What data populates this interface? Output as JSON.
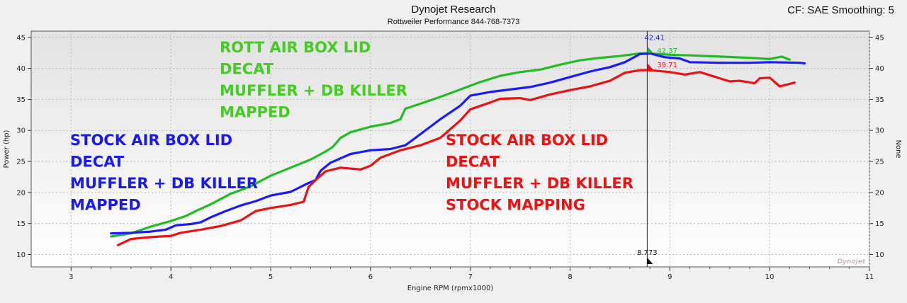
{
  "header": {
    "title": "Dynojet Research",
    "subtitle": "Rottweiler Performance 844-768-7373",
    "right": "CF: SAE Smoothing: 5"
  },
  "chart_data": {
    "type": "line",
    "xlabel": "Engine RPM (rpmx1000)",
    "ylabel": "Power (hp)",
    "ylabel_right": "None",
    "xlim": [
      2.6,
      11.0
    ],
    "ylim": [
      8,
      46
    ],
    "xticks": [
      "3",
      "4",
      "5",
      "6",
      "7",
      "8",
      "9",
      "10",
      "11"
    ],
    "yticks": [
      "10",
      "15",
      "20",
      "25",
      "30",
      "35",
      "40",
      "45"
    ],
    "grid": true,
    "cursor": {
      "x": 8.773,
      "x_label": "8.773",
      "readouts": [
        {
          "label": "42.41",
          "value": 42.41,
          "color": "#1a1aff"
        },
        {
          "label": "42.37",
          "value": 42.37,
          "color": "#22bb22"
        },
        {
          "label": "39.71",
          "value": 39.71,
          "color": "#ee1111"
        }
      ]
    },
    "series": [
      {
        "color": "#22bb22",
        "points": [
          [
            3.4,
            12.9
          ],
          [
            3.6,
            13.4
          ],
          [
            3.8,
            14.5
          ],
          [
            4.0,
            15.4
          ],
          [
            4.15,
            16.2
          ],
          [
            4.25,
            17.0
          ],
          [
            4.4,
            18.1
          ],
          [
            4.6,
            19.8
          ],
          [
            4.8,
            21.0
          ],
          [
            5.0,
            22.7
          ],
          [
            5.2,
            24.0
          ],
          [
            5.4,
            25.3
          ],
          [
            5.55,
            26.6
          ],
          [
            5.62,
            27.3
          ],
          [
            5.7,
            28.8
          ],
          [
            5.8,
            29.7
          ],
          [
            6.0,
            30.6
          ],
          [
            6.2,
            31.2
          ],
          [
            6.3,
            31.8
          ],
          [
            6.35,
            33.5
          ],
          [
            6.5,
            34.3
          ],
          [
            6.7,
            35.4
          ],
          [
            6.9,
            36.6
          ],
          [
            7.1,
            37.8
          ],
          [
            7.3,
            38.8
          ],
          [
            7.5,
            39.4
          ],
          [
            7.7,
            39.8
          ],
          [
            7.9,
            40.6
          ],
          [
            8.1,
            41.3
          ],
          [
            8.3,
            41.7
          ],
          [
            8.5,
            42.0
          ],
          [
            8.7,
            42.4
          ],
          [
            8.8,
            42.4
          ],
          [
            9.0,
            42.2
          ],
          [
            9.2,
            42.1
          ],
          [
            9.5,
            41.9
          ],
          [
            9.8,
            41.7
          ],
          [
            10.0,
            41.5
          ],
          [
            10.12,
            41.9
          ],
          [
            10.2,
            41.4
          ]
        ]
      },
      {
        "color": "#1a1aff",
        "points": [
          [
            3.4,
            13.4
          ],
          [
            3.6,
            13.5
          ],
          [
            3.8,
            13.7
          ],
          [
            3.95,
            14.0
          ],
          [
            4.05,
            14.7
          ],
          [
            4.2,
            14.9
          ],
          [
            4.3,
            15.2
          ],
          [
            4.4,
            16.0
          ],
          [
            4.55,
            17.0
          ],
          [
            4.7,
            17.9
          ],
          [
            4.85,
            18.6
          ],
          [
            5.0,
            19.5
          ],
          [
            5.2,
            20.1
          ],
          [
            5.35,
            21.3
          ],
          [
            5.45,
            22.0
          ],
          [
            5.5,
            23.5
          ],
          [
            5.6,
            24.8
          ],
          [
            5.8,
            26.2
          ],
          [
            6.0,
            26.8
          ],
          [
            6.2,
            27.0
          ],
          [
            6.35,
            27.6
          ],
          [
            6.5,
            29.4
          ],
          [
            6.7,
            31.8
          ],
          [
            6.9,
            34.0
          ],
          [
            7.0,
            35.6
          ],
          [
            7.2,
            36.2
          ],
          [
            7.4,
            36.6
          ],
          [
            7.6,
            37.0
          ],
          [
            7.8,
            37.7
          ],
          [
            8.0,
            38.6
          ],
          [
            8.2,
            39.5
          ],
          [
            8.4,
            40.2
          ],
          [
            8.55,
            41.0
          ],
          [
            8.7,
            42.3
          ],
          [
            8.8,
            42.4
          ],
          [
            8.95,
            41.8
          ],
          [
            9.1,
            41.6
          ],
          [
            9.2,
            41.0
          ],
          [
            9.5,
            40.9
          ],
          [
            9.8,
            40.9
          ],
          [
            10.0,
            41.0
          ],
          [
            10.3,
            40.9
          ],
          [
            10.35,
            40.8
          ]
        ]
      },
      {
        "color": "#ee1111",
        "points": [
          [
            3.47,
            11.5
          ],
          [
            3.6,
            12.5
          ],
          [
            3.8,
            12.8
          ],
          [
            4.0,
            13.0
          ],
          [
            4.1,
            13.5
          ],
          [
            4.3,
            14.0
          ],
          [
            4.5,
            14.6
          ],
          [
            4.7,
            15.5
          ],
          [
            4.85,
            17.0
          ],
          [
            5.0,
            17.5
          ],
          [
            5.2,
            18.0
          ],
          [
            5.33,
            18.5
          ],
          [
            5.38,
            20.9
          ],
          [
            5.45,
            22.0
          ],
          [
            5.55,
            23.4
          ],
          [
            5.7,
            24.0
          ],
          [
            5.9,
            23.7
          ],
          [
            6.0,
            24.3
          ],
          [
            6.1,
            25.6
          ],
          [
            6.3,
            26.8
          ],
          [
            6.5,
            27.6
          ],
          [
            6.7,
            28.8
          ],
          [
            6.9,
            31.6
          ],
          [
            7.0,
            33.4
          ],
          [
            7.2,
            34.5
          ],
          [
            7.3,
            35.1
          ],
          [
            7.5,
            35.2
          ],
          [
            7.6,
            34.9
          ],
          [
            7.8,
            35.8
          ],
          [
            8.0,
            36.5
          ],
          [
            8.2,
            37.1
          ],
          [
            8.4,
            38.0
          ],
          [
            8.55,
            39.3
          ],
          [
            8.7,
            39.7
          ],
          [
            8.8,
            39.7
          ],
          [
            9.0,
            39.4
          ],
          [
            9.15,
            39.0
          ],
          [
            9.3,
            39.4
          ],
          [
            9.5,
            38.4
          ],
          [
            9.6,
            37.9
          ],
          [
            9.7,
            38.0
          ],
          [
            9.85,
            37.6
          ],
          [
            9.9,
            38.4
          ],
          [
            10.0,
            38.5
          ],
          [
            10.1,
            37.1
          ],
          [
            10.2,
            37.5
          ],
          [
            10.25,
            37.7
          ]
        ]
      }
    ]
  },
  "annotations": [
    {
      "id": "green",
      "color": "#44cc22",
      "lines": [
        "ROTT AIR BOX LID",
        "DECAT",
        "MUFFLER + DB KILLER",
        "MAPPED"
      ]
    },
    {
      "id": "blue",
      "color": "#1a1aee",
      "lines": [
        "STOCK AIR BOX LID",
        "DECAT",
        "MUFFLER + DB KILLER",
        "MAPPED"
      ]
    },
    {
      "id": "red",
      "color": "#ee1111",
      "lines": [
        "STOCK AIR BOX LID",
        "DECAT",
        "MUFFLER + DB KILLER",
        "STOCK MAPPING"
      ]
    }
  ],
  "watermark": "Dynojet"
}
